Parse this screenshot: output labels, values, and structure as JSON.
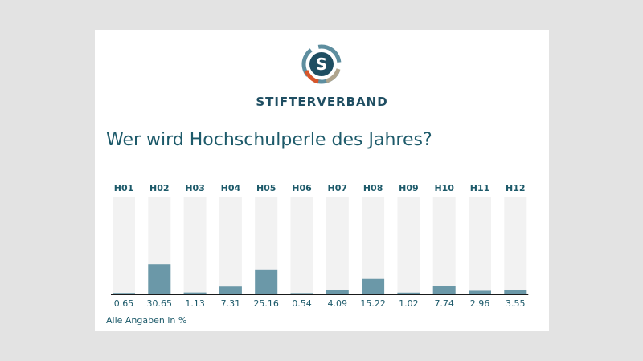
{
  "brand": {
    "name": "STIFTERVERBAND",
    "logo_letter": "S",
    "colors": {
      "teal": "#5e8e9f",
      "orange": "#d8562b",
      "tan": "#b0a48c",
      "dark": "#1f4e62"
    }
  },
  "chart_data": {
    "type": "bar",
    "title": "Wer wird Hochschulperle des Jahres?",
    "categories": [
      "H01",
      "H02",
      "H03",
      "H04",
      "H05",
      "H06",
      "H07",
      "H08",
      "H09",
      "H10",
      "H11",
      "H12"
    ],
    "values": [
      0.65,
      30.65,
      1.13,
      7.31,
      25.16,
      0.54,
      4.09,
      15.22,
      1.02,
      7.74,
      2.96,
      3.55
    ],
    "value_labels": [
      "0.65",
      "30.65",
      "1.13",
      "7.31",
      "25.16",
      "0.54",
      "4.09",
      "15.22",
      "1.02",
      "7.74",
      "2.96",
      "3.55"
    ],
    "ylim": [
      0,
      100
    ],
    "note": "Alle Angaben in %",
    "bar_color": "#6b98a8",
    "track_color": "#f2f2f2",
    "text_color": "#1d5a6a"
  }
}
